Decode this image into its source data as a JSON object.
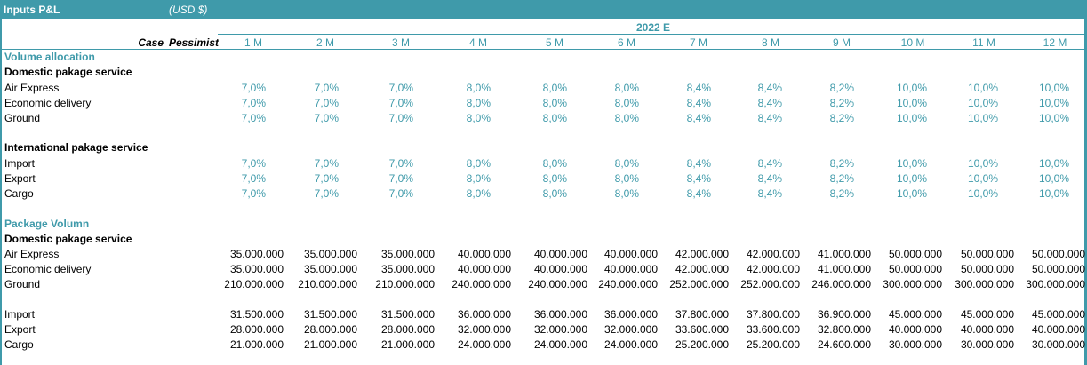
{
  "header": {
    "title": "Inputs P&L",
    "currency": "(USD $)"
  },
  "year": "2022 E",
  "case": {
    "label": "Case",
    "value": "Pessimistic"
  },
  "months": [
    "1 M",
    "2 M",
    "3 M",
    "4 M",
    "5 M",
    "6 M",
    "7 M",
    "8 M",
    "9 M",
    "10 M",
    "11 M",
    "12 M"
  ],
  "volume_allocation": {
    "title": "Volume allocation",
    "domestic": {
      "title": "Domestic pakage service",
      "rows": [
        {
          "label": "Air Express",
          "values": [
            "7,0%",
            "7,0%",
            "7,0%",
            "8,0%",
            "8,0%",
            "8,0%",
            "8,4%",
            "8,4%",
            "8,2%",
            "10,0%",
            "10,0%",
            "10,0%"
          ]
        },
        {
          "label": "Economic delivery",
          "values": [
            "7,0%",
            "7,0%",
            "7,0%",
            "8,0%",
            "8,0%",
            "8,0%",
            "8,4%",
            "8,4%",
            "8,2%",
            "10,0%",
            "10,0%",
            "10,0%"
          ]
        },
        {
          "label": "Ground",
          "values": [
            "7,0%",
            "7,0%",
            "7,0%",
            "8,0%",
            "8,0%",
            "8,0%",
            "8,4%",
            "8,4%",
            "8,2%",
            "10,0%",
            "10,0%",
            "10,0%"
          ]
        }
      ]
    },
    "international": {
      "title": "International pakage service",
      "rows": [
        {
          "label": "Import",
          "values": [
            "7,0%",
            "7,0%",
            "7,0%",
            "8,0%",
            "8,0%",
            "8,0%",
            "8,4%",
            "8,4%",
            "8,2%",
            "10,0%",
            "10,0%",
            "10,0%"
          ]
        },
        {
          "label": "Export",
          "values": [
            "7,0%",
            "7,0%",
            "7,0%",
            "8,0%",
            "8,0%",
            "8,0%",
            "8,4%",
            "8,4%",
            "8,2%",
            "10,0%",
            "10,0%",
            "10,0%"
          ]
        },
        {
          "label": "Cargo",
          "values": [
            "7,0%",
            "7,0%",
            "7,0%",
            "8,0%",
            "8,0%",
            "8,0%",
            "8,4%",
            "8,4%",
            "8,2%",
            "10,0%",
            "10,0%",
            "10,0%"
          ]
        }
      ]
    }
  },
  "package_volume": {
    "title": "Package Volumn",
    "domestic": {
      "title": "Domestic pakage service",
      "rows": [
        {
          "label": "Air Express",
          "values": [
            "35.000.000",
            "35.000.000",
            "35.000.000",
            "40.000.000",
            "40.000.000",
            "40.000.000",
            "42.000.000",
            "42.000.000",
            "41.000.000",
            "50.000.000",
            "50.000.000",
            "50.000.000"
          ]
        },
        {
          "label": "Economic delivery",
          "values": [
            "35.000.000",
            "35.000.000",
            "35.000.000",
            "40.000.000",
            "40.000.000",
            "40.000.000",
            "42.000.000",
            "42.000.000",
            "41.000.000",
            "50.000.000",
            "50.000.000",
            "50.000.000"
          ]
        },
        {
          "label": "Ground",
          "values": [
            "210.000.000",
            "210.000.000",
            "210.000.000",
            "240.000.000",
            "240.000.000",
            "240.000.000",
            "252.000.000",
            "252.000.000",
            "246.000.000",
            "300.000.000",
            "300.000.000",
            "300.000.000"
          ]
        }
      ]
    },
    "international": {
      "rows": [
        {
          "label": "Import",
          "values": [
            "31.500.000",
            "31.500.000",
            "31.500.000",
            "36.000.000",
            "36.000.000",
            "36.000.000",
            "37.800.000",
            "37.800.000",
            "36.900.000",
            "45.000.000",
            "45.000.000",
            "45.000.000"
          ]
        },
        {
          "label": "Export",
          "values": [
            "28.000.000",
            "28.000.000",
            "28.000.000",
            "32.000.000",
            "32.000.000",
            "32.000.000",
            "33.600.000",
            "33.600.000",
            "32.800.000",
            "40.000.000",
            "40.000.000",
            "40.000.000"
          ]
        },
        {
          "label": "Cargo",
          "values": [
            "21.000.000",
            "21.000.000",
            "21.000.000",
            "24.000.000",
            "24.000.000",
            "24.000.000",
            "25.200.000",
            "25.200.000",
            "24.600.000",
            "30.000.000",
            "30.000.000",
            "30.000.000"
          ]
        }
      ]
    }
  },
  "colors": {
    "accent": "#3f9aaa",
    "text": "#000000",
    "background": "#ffffff"
  }
}
